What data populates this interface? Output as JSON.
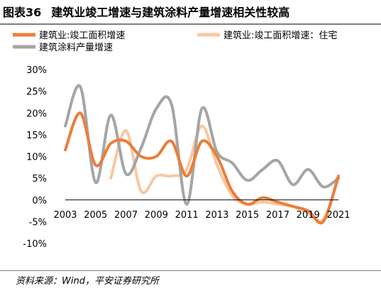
{
  "figure": {
    "number": "图表36",
    "title": "建筑业竣工增速与建筑涂料产量增速相关性较高",
    "source": "资料来源：Wind，平安证券研究所"
  },
  "chart_data": {
    "type": "line",
    "title": "建筑业竣工增速与建筑涂料产量增速相关性较高",
    "xlabel": "",
    "ylabel": "",
    "ylim": [
      -10,
      30
    ],
    "y_ticks": [
      30,
      25,
      20,
      15,
      10,
      5,
      0,
      -5,
      -10
    ],
    "y_tick_labels": [
      "30%",
      "25%",
      "20%",
      "15%",
      "10%",
      "5%",
      "0%",
      "-5%",
      "-10%"
    ],
    "x_tick_labels": [
      "2003",
      "2005",
      "2007",
      "2009",
      "2011",
      "2013",
      "2015",
      "2017",
      "2019",
      "2021"
    ],
    "legend_position": "top",
    "grid": false,
    "x": [
      2003,
      2004,
      2005,
      2006,
      2007,
      2008,
      2009,
      2010,
      2011,
      2012,
      2013,
      2014,
      2015,
      2016,
      2017,
      2018,
      2019,
      2020,
      2021
    ],
    "series": [
      {
        "name": "建筑业:竣工面积增速",
        "color": "#e97e3c",
        "width": 4,
        "values": [
          11.5,
          20,
          8,
          13,
          13.5,
          10,
          10,
          13.5,
          5.5,
          13.5,
          10,
          2,
          -1,
          0.5,
          -0.5,
          -1.5,
          -2.5,
          -5,
          5.5
        ]
      },
      {
        "name": "建筑业:竣工面积增速：住宅",
        "color": "#f7c8a4",
        "width": 4,
        "values": [
          null,
          null,
          null,
          5,
          16,
          2,
          5.5,
          5.5,
          7,
          17,
          8,
          1,
          -1,
          -0.5,
          -1,
          -1.5,
          -3,
          -4.5,
          5
        ]
      },
      {
        "name": "建筑涂料产量增速",
        "color": "#a5a5a5",
        "width": 4,
        "values": [
          17,
          26,
          4,
          19.5,
          6,
          12,
          21,
          22,
          -1,
          21,
          11,
          8.5,
          4.5,
          7,
          9,
          3.5,
          7,
          3,
          5
        ]
      }
    ]
  }
}
